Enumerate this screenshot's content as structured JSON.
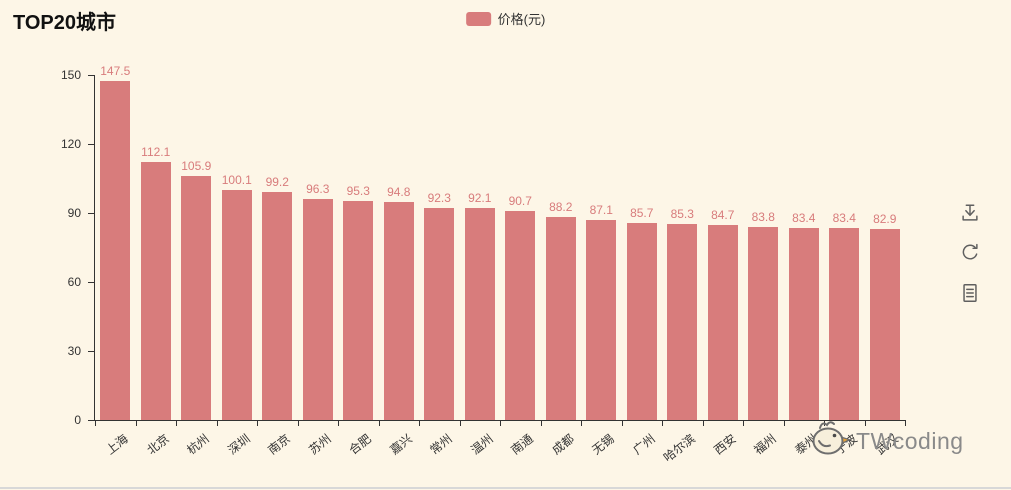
{
  "title": "TOP20城市",
  "legend": {
    "label": "价格(元)",
    "swatch_color": "#d87c7c"
  },
  "watermark": {
    "text": "TWcoding"
  },
  "toolbox": {
    "items": [
      "save-as-image",
      "restore",
      "data-view"
    ]
  },
  "colors": {
    "background": "#fdf6e7",
    "bar": "#d87c7c",
    "axis": "#333333",
    "value_label": "#d87c7c",
    "tick_label": "#333333"
  },
  "chart_data": {
    "type": "bar",
    "title": "TOP20城市",
    "series_name": "价格(元)",
    "categories": [
      "上海",
      "北京",
      "杭州",
      "深圳",
      "南京",
      "苏州",
      "合肥",
      "嘉兴",
      "常州",
      "温州",
      "南通",
      "成都",
      "无锡",
      "广州",
      "哈尔滨",
      "西安",
      "福州",
      "泰州",
      "宁波",
      "武汉"
    ],
    "values": [
      147.5,
      112.1,
      105.9,
      100.1,
      99.2,
      96.3,
      95.3,
      94.8,
      92.3,
      92.1,
      90.7,
      88.2,
      87.1,
      85.7,
      85.3,
      84.7,
      83.8,
      83.4,
      83.4,
      82.9
    ],
    "ylim": [
      0,
      150
    ],
    "yticks": [
      0,
      30,
      60,
      90,
      120,
      150
    ],
    "grid": false,
    "legend_position": "top-center",
    "x_label_rotate_deg": -38,
    "bar_color": "#d87c7c"
  }
}
